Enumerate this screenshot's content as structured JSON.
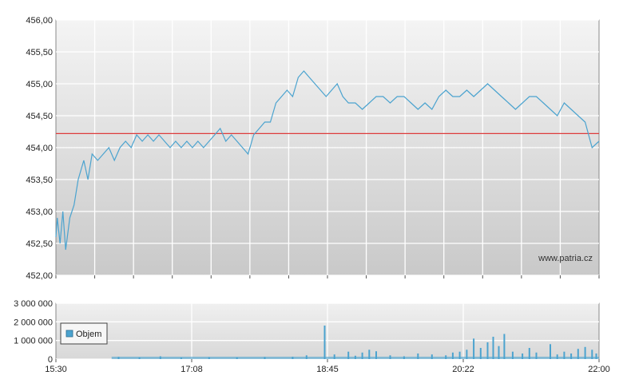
{
  "chart_data": [
    {
      "type": "line",
      "title": "",
      "xlabel": "",
      "ylabel": "",
      "ylim": [
        452.0,
        456.0
      ],
      "yticks": [
        "456,00",
        "455,50",
        "455,00",
        "454,50",
        "454,00",
        "453,50",
        "453,00",
        "452,50",
        "452,00"
      ],
      "ytick_values": [
        456.0,
        455.5,
        455.0,
        454.5,
        454.0,
        453.5,
        453.0,
        452.5,
        452.0
      ],
      "x_range_minutes": [
        "15:30",
        "22:00"
      ],
      "grid": true,
      "series": [
        {
          "name": "",
          "color": "#4ba3cf",
          "points": [
            [
              "15:30",
              452.6
            ],
            [
              "15:31",
              452.9
            ],
            [
              "15:33",
              452.5
            ],
            [
              "15:35",
              453.0
            ],
            [
              "15:37",
              452.4
            ],
            [
              "15:40",
              452.9
            ],
            [
              "15:43",
              453.1
            ],
            [
              "15:46",
              453.5
            ],
            [
              "15:50",
              453.8
            ],
            [
              "15:53",
              453.5
            ],
            [
              "15:56",
              453.9
            ],
            [
              "16:00",
              453.8
            ],
            [
              "16:04",
              453.9
            ],
            [
              "16:08",
              454.0
            ],
            [
              "16:12",
              453.8
            ],
            [
              "16:16",
              454.0
            ],
            [
              "16:20",
              454.1
            ],
            [
              "16:24",
              454.0
            ],
            [
              "16:28",
              454.2
            ],
            [
              "16:32",
              454.1
            ],
            [
              "16:36",
              454.2
            ],
            [
              "16:40",
              454.1
            ],
            [
              "16:44",
              454.2
            ],
            [
              "16:48",
              454.1
            ],
            [
              "16:52",
              454.0
            ],
            [
              "16:56",
              454.1
            ],
            [
              "17:00",
              454.0
            ],
            [
              "17:04",
              454.1
            ],
            [
              "17:08",
              454.0
            ],
            [
              "17:12",
              454.1
            ],
            [
              "17:16",
              454.0
            ],
            [
              "17:20",
              454.1
            ],
            [
              "17:24",
              454.2
            ],
            [
              "17:28",
              454.3
            ],
            [
              "17:32",
              454.1
            ],
            [
              "17:36",
              454.2
            ],
            [
              "17:40",
              454.1
            ],
            [
              "17:44",
              454.0
            ],
            [
              "17:48",
              453.9
            ],
            [
              "17:52",
              454.2
            ],
            [
              "17:56",
              454.3
            ],
            [
              "18:00",
              454.4
            ],
            [
              "18:04",
              454.4
            ],
            [
              "18:08",
              454.7
            ],
            [
              "18:12",
              454.8
            ],
            [
              "18:16",
              454.9
            ],
            [
              "18:20",
              454.8
            ],
            [
              "18:24",
              455.1
            ],
            [
              "18:28",
              455.2
            ],
            [
              "18:32",
              455.1
            ],
            [
              "18:36",
              455.0
            ],
            [
              "18:40",
              454.9
            ],
            [
              "18:44",
              454.8
            ],
            [
              "18:48",
              454.9
            ],
            [
              "18:52",
              455.0
            ],
            [
              "18:56",
              454.8
            ],
            [
              "19:00",
              454.7
            ],
            [
              "19:05",
              454.7
            ],
            [
              "19:10",
              454.6
            ],
            [
              "19:15",
              454.7
            ],
            [
              "19:20",
              454.8
            ],
            [
              "19:25",
              454.8
            ],
            [
              "19:30",
              454.7
            ],
            [
              "19:35",
              454.8
            ],
            [
              "19:40",
              454.8
            ],
            [
              "19:45",
              454.7
            ],
            [
              "19:50",
              454.6
            ],
            [
              "19:55",
              454.7
            ],
            [
              "20:00",
              454.6
            ],
            [
              "20:05",
              454.8
            ],
            [
              "20:10",
              454.9
            ],
            [
              "20:15",
              454.8
            ],
            [
              "20:20",
              454.8
            ],
            [
              "20:25",
              454.9
            ],
            [
              "20:30",
              454.8
            ],
            [
              "20:35",
              454.9
            ],
            [
              "20:40",
              455.0
            ],
            [
              "20:45",
              454.9
            ],
            [
              "20:50",
              454.8
            ],
            [
              "20:55",
              454.7
            ],
            [
              "21:00",
              454.6
            ],
            [
              "21:05",
              454.7
            ],
            [
              "21:10",
              454.8
            ],
            [
              "21:15",
              454.8
            ],
            [
              "21:20",
              454.7
            ],
            [
              "21:25",
              454.6
            ],
            [
              "21:30",
              454.5
            ],
            [
              "21:35",
              454.7
            ],
            [
              "21:40",
              454.6
            ],
            [
              "21:45",
              454.5
            ],
            [
              "21:50",
              454.4
            ],
            [
              "21:55",
              454.0
            ],
            [
              "22:00",
              454.1
            ]
          ]
        },
        {
          "name": "",
          "color": "#dd3b3b",
          "points": [
            [
              "15:30",
              454.22
            ],
            [
              "22:00",
              454.22
            ]
          ]
        }
      ],
      "watermark": "www.patria.cz"
    },
    {
      "type": "bar",
      "title": "",
      "xlabel": "",
      "ylabel": "",
      "ylim": [
        0,
        3000000
      ],
      "yticks": [
        "3 000 000",
        "2 000 000",
        "1 000 000",
        "0"
      ],
      "ytick_values": [
        3000000,
        2000000,
        1000000,
        0
      ],
      "xticks": [
        "15:30",
        "17:08",
        "18:45",
        "20:22",
        "22:00"
      ],
      "grid": true,
      "legend": {
        "position": "left",
        "label": "Objem",
        "color": "#4ba3cf"
      },
      "series": [
        {
          "name": "Objem",
          "color": "#4ba3cf",
          "points": [
            [
              "16:15",
              120000
            ],
            [
              "16:30",
              90000
            ],
            [
              "16:45",
              150000
            ],
            [
              "17:00",
              80000
            ],
            [
              "17:20",
              100000
            ],
            [
              "17:40",
              90000
            ],
            [
              "18:00",
              110000
            ],
            [
              "18:20",
              130000
            ],
            [
              "18:30",
              200000
            ],
            [
              "18:43",
              1800000
            ],
            [
              "18:50",
              250000
            ],
            [
              "19:00",
              400000
            ],
            [
              "19:05",
              180000
            ],
            [
              "19:10",
              350000
            ],
            [
              "19:15",
              500000
            ],
            [
              "19:20",
              420000
            ],
            [
              "19:30",
              200000
            ],
            [
              "19:40",
              150000
            ],
            [
              "19:50",
              300000
            ],
            [
              "20:00",
              250000
            ],
            [
              "20:10",
              200000
            ],
            [
              "20:15",
              350000
            ],
            [
              "20:20",
              400000
            ],
            [
              "20:25",
              500000
            ],
            [
              "20:30",
              1100000
            ],
            [
              "20:35",
              600000
            ],
            [
              "20:40",
              900000
            ],
            [
              "20:44",
              1200000
            ],
            [
              "20:48",
              700000
            ],
            [
              "20:52",
              1350000
            ],
            [
              "20:58",
              400000
            ],
            [
              "21:05",
              300000
            ],
            [
              "21:10",
              600000
            ],
            [
              "21:15",
              350000
            ],
            [
              "21:25",
              800000
            ],
            [
              "21:30",
              250000
            ],
            [
              "21:35",
              400000
            ],
            [
              "21:40",
              300000
            ],
            [
              "21:45",
              550000
            ],
            [
              "21:50",
              650000
            ],
            [
              "21:55",
              500000
            ],
            [
              "21:58",
              300000
            ]
          ]
        }
      ]
    }
  ]
}
